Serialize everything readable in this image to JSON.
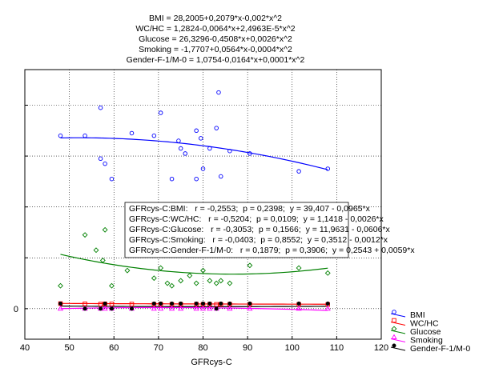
{
  "chart_data": {
    "type": "scatter",
    "title_lines": [
      "BMI  = 28,2005+0,2079*x-0,002*x^2",
      "WC/HC  = 1,2824-0,0064*x+2,4963E-5*x^2",
      "Glucose  = 26,3296-0,4508*x+0,0026*x^2",
      "Smoking  = -1,7707+0,0564*x-0,0004*x^2",
      "Gender-F-1/M-0  = 1,0754-0,0164*x+0,0001*x^2"
    ],
    "xlabel": "GFRcys-C",
    "ylabel": "",
    "xlim": [
      40,
      120
    ],
    "ylim": [
      -6,
      47
    ],
    "x_ticks": [
      40,
      50,
      60,
      70,
      80,
      90,
      100,
      110,
      120
    ],
    "y_ticks": [
      0
    ],
    "grid": true,
    "legend_position": "bottom-right",
    "stats_box": [
      "GFRcys-C:BMI:   r = -0,2553;  p = 0,2398;  y = 39,407 - 0,0965*x",
      "GFRcys-C:WC/HC:   r = -0,5204;  p = 0,0109;  y = 1,1418 - 0,0026*x",
      "GFRcys-C:Glucose:   r = -0,3053;  p = 0,1566;  y = 11,9631 - 0,0606*x",
      "GFRcys-C:Smoking:   r = -0,0403;  p = 0,8552;  y = 0,3512 - 0,0012*x",
      "GFRcys-C:Gender-F-1/M-0:   r = 0,1879;  p = 0,3906;  y = 0,2543 + 0,0059*x"
    ],
    "series": [
      {
        "name": "BMI",
        "color": "#0000ff",
        "marker": "circle",
        "curve": [
          28.2005,
          0.2079,
          -0.002
        ],
        "x": [
          48,
          53.5,
          57,
          57,
          58,
          59.5,
          64,
          69,
          70.5,
          73,
          74.5,
          75,
          76,
          78.5,
          78.5,
          79.5,
          80,
          81.5,
          83,
          83.5,
          84,
          86,
          90.5,
          101.5,
          108
        ],
        "y": [
          34,
          34,
          39.5,
          29.5,
          28.5,
          25.5,
          34.5,
          34,
          38.5,
          25.5,
          33,
          31.5,
          30.5,
          35,
          25.5,
          33.5,
          27.5,
          31.5,
          35.5,
          42.5,
          26,
          31,
          30.5,
          27,
          27.5
        ]
      },
      {
        "name": "WC/HC",
        "color": "#ff0000",
        "marker": "square",
        "curve": [
          1.2824,
          -0.0064,
          2.4963e-05
        ],
        "x": [
          48,
          53.5,
          57,
          58,
          59.5,
          64,
          69,
          70.5,
          73,
          75,
          78.5,
          80,
          81.5,
          83,
          84,
          86,
          90.5,
          101.5,
          108
        ],
        "y": [
          1.0,
          0.95,
          0.9,
          0.95,
          0.92,
          0.9,
          0.88,
          0.9,
          0.87,
          0.88,
          0.9,
          0.88,
          0.9,
          0.85,
          0.87,
          0.88,
          0.86,
          0.85,
          0.83
        ]
      },
      {
        "name": "Glucose",
        "color": "#008000",
        "marker": "diamond",
        "curve": [
          26.3296,
          -0.4508,
          0.0026
        ],
        "x": [
          48,
          53.5,
          56,
          57.5,
          58,
          59.5,
          63,
          69,
          70.5,
          72,
          73,
          75,
          77,
          78.5,
          80,
          81.5,
          83,
          84,
          86,
          90.5,
          101.5,
          108
        ],
        "y": [
          4.5,
          14.5,
          11.5,
          9.5,
          15.5,
          4.5,
          7.5,
          6.0,
          8.0,
          5.0,
          4.5,
          5.5,
          6.5,
          5.0,
          7.5,
          5.5,
          5.0,
          5.5,
          5.0,
          8.5,
          8.0,
          7.0
        ]
      },
      {
        "name": "Smoking",
        "color": "#ff00ff",
        "marker": "triangle",
        "curve": [
          -1.7707,
          0.0564,
          -0.0004
        ],
        "x": [
          48,
          53.5,
          57,
          58,
          59.5,
          64,
          69,
          70.5,
          73,
          75,
          78.5,
          80,
          81.5,
          83,
          86,
          90.5,
          101.5,
          108
        ],
        "y": [
          0,
          0,
          0,
          0,
          0,
          0,
          0,
          0,
          0,
          0,
          0,
          0,
          0,
          0,
          0,
          0,
          0,
          0
        ]
      },
      {
        "name": "Gender-F-1/M-0",
        "color": "#000000",
        "marker": "dot",
        "curve": [
          1.0754,
          -0.0164,
          0.0001
        ],
        "x": [
          48,
          53.5,
          57,
          58,
          59.5,
          64,
          69,
          70.5,
          73,
          75,
          78.5,
          80,
          81.5,
          83,
          84,
          86,
          90.5,
          101.5,
          108
        ],
        "y": [
          1,
          0,
          0,
          1,
          0,
          0,
          1,
          1,
          1,
          1,
          1,
          1,
          1,
          0,
          1,
          1,
          1,
          1,
          1
        ]
      }
    ]
  }
}
